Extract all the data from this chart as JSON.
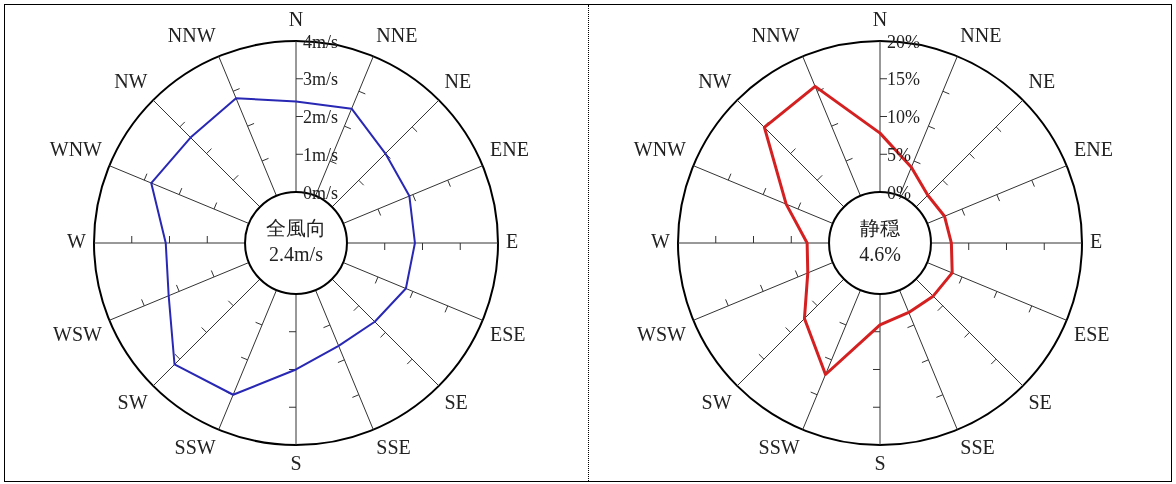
{
  "chart_data": [
    {
      "type": "radar",
      "categories": [
        "N",
        "NNE",
        "NE",
        "ENE",
        "E",
        "ESE",
        "SE",
        "SSE",
        "S",
        "SSW",
        "SW",
        "WSW",
        "W",
        "WNW",
        "NW",
        "NNW"
      ],
      "series": [
        {
          "color": "#2828b4",
          "values": [
            2.4,
            2.5,
            2.0,
            1.9,
            1.8,
            1.8,
            1.6,
            1.6,
            2.0,
            3.0,
            3.2,
            2.3,
            2.1,
            2.8,
            2.6,
            2.8
          ]
        }
      ],
      "ylim": [
        -1.35,
        4
      ],
      "yticks": [
        {
          "value": 0,
          "label": "0m/s"
        },
        {
          "value": 1,
          "label": "1m/s"
        },
        {
          "value": 2,
          "label": "2m/s"
        },
        {
          "value": 3,
          "label": "3m/s"
        },
        {
          "value": 4,
          "label": "4m/s"
        }
      ],
      "annotations": [
        "全風向",
        "2.4m/s"
      ]
    },
    {
      "type": "radar",
      "categories": [
        "N",
        "NNE",
        "NE",
        "ENE",
        "E",
        "ESE",
        "SE",
        "SSE",
        "S",
        "SSW",
        "SW",
        "WSW",
        "W",
        "WNW",
        "NW",
        "NNW"
      ],
      "series": [
        {
          "color": "#d42020",
          "values": [
            7.8,
            4.1,
            2.2,
            2.5,
            2.7,
            3.6,
            3.2,
            3.2,
            4.1,
            12.1,
            7.4,
            3.6,
            2.9,
            6.7,
            14.9,
            15.7
          ]
        }
      ],
      "ylim": [
        -6.75,
        20
      ],
      "yticks": [
        {
          "value": 0,
          "label": "0%"
        },
        {
          "value": 5,
          "label": "5%"
        },
        {
          "value": 10,
          "label": "10%"
        },
        {
          "value": 15,
          "label": "15%"
        },
        {
          "value": 20,
          "label": "20%"
        }
      ],
      "annotations": [
        "静穏",
        "4.6%"
      ]
    }
  ]
}
